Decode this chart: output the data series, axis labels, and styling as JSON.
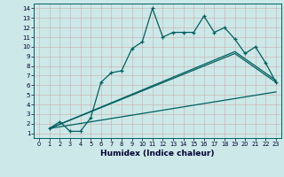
{
  "xlabel": "Humidex (Indice chaleur)",
  "bg_color": "#cce8e8",
  "grid_color": "#aacccc",
  "line_color": "#006060",
  "xlim": [
    -0.5,
    23.5
  ],
  "ylim": [
    0.5,
    14.5
  ],
  "xticks": [
    0,
    1,
    2,
    3,
    4,
    5,
    6,
    7,
    8,
    9,
    10,
    11,
    12,
    13,
    14,
    15,
    16,
    17,
    18,
    19,
    20,
    21,
    22,
    23
  ],
  "yticks": [
    1,
    2,
    3,
    4,
    5,
    6,
    7,
    8,
    9,
    10,
    11,
    12,
    13,
    14
  ],
  "main_x": [
    1,
    2,
    3,
    4,
    5,
    6,
    7,
    8,
    9,
    10,
    11,
    12,
    13,
    14,
    15,
    16,
    17,
    18,
    19,
    20,
    21,
    22,
    23
  ],
  "main_y": [
    1.5,
    2.2,
    1.2,
    1.2,
    2.6,
    6.3,
    7.3,
    7.5,
    9.8,
    10.5,
    14.0,
    11.0,
    11.5,
    11.5,
    11.5,
    13.2,
    11.5,
    12.0,
    10.8,
    9.3,
    10.0,
    8.3,
    6.3
  ],
  "line1_x": [
    1,
    23
  ],
  "line1_y": [
    1.5,
    5.3
  ],
  "line2_x": [
    1,
    19,
    23
  ],
  "line2_y": [
    1.5,
    9.3,
    6.3
  ],
  "line3_x": [
    1,
    19,
    23
  ],
  "line3_y": [
    1.5,
    9.5,
    6.5
  ]
}
